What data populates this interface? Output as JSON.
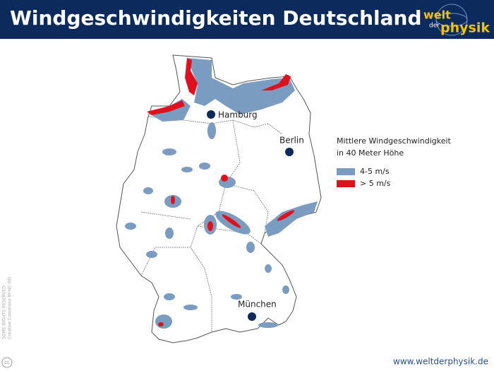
{
  "header": {
    "title": "Windgeschwindigkeiten Deutschland",
    "logo_top": "welt",
    "logo_mid": "der",
    "logo_bottom": "physik"
  },
  "map": {
    "cities": [
      "Hamburg",
      "Berlin",
      "München"
    ]
  },
  "legend": {
    "title_lines": [
      "Mittlere Windgeschwindigkeit",
      "in 40 Meter Höhe"
    ],
    "entries": [
      "4-5 m/s",
      "> 5 m/s"
    ]
  },
  "footer": {
    "url": "www.weltderphysik.de",
    "license_lines": [
      "SOME RIGHTS RESERVED",
      "Creative Commons BY-NC-ND"
    ],
    "cc": "cc"
  }
}
